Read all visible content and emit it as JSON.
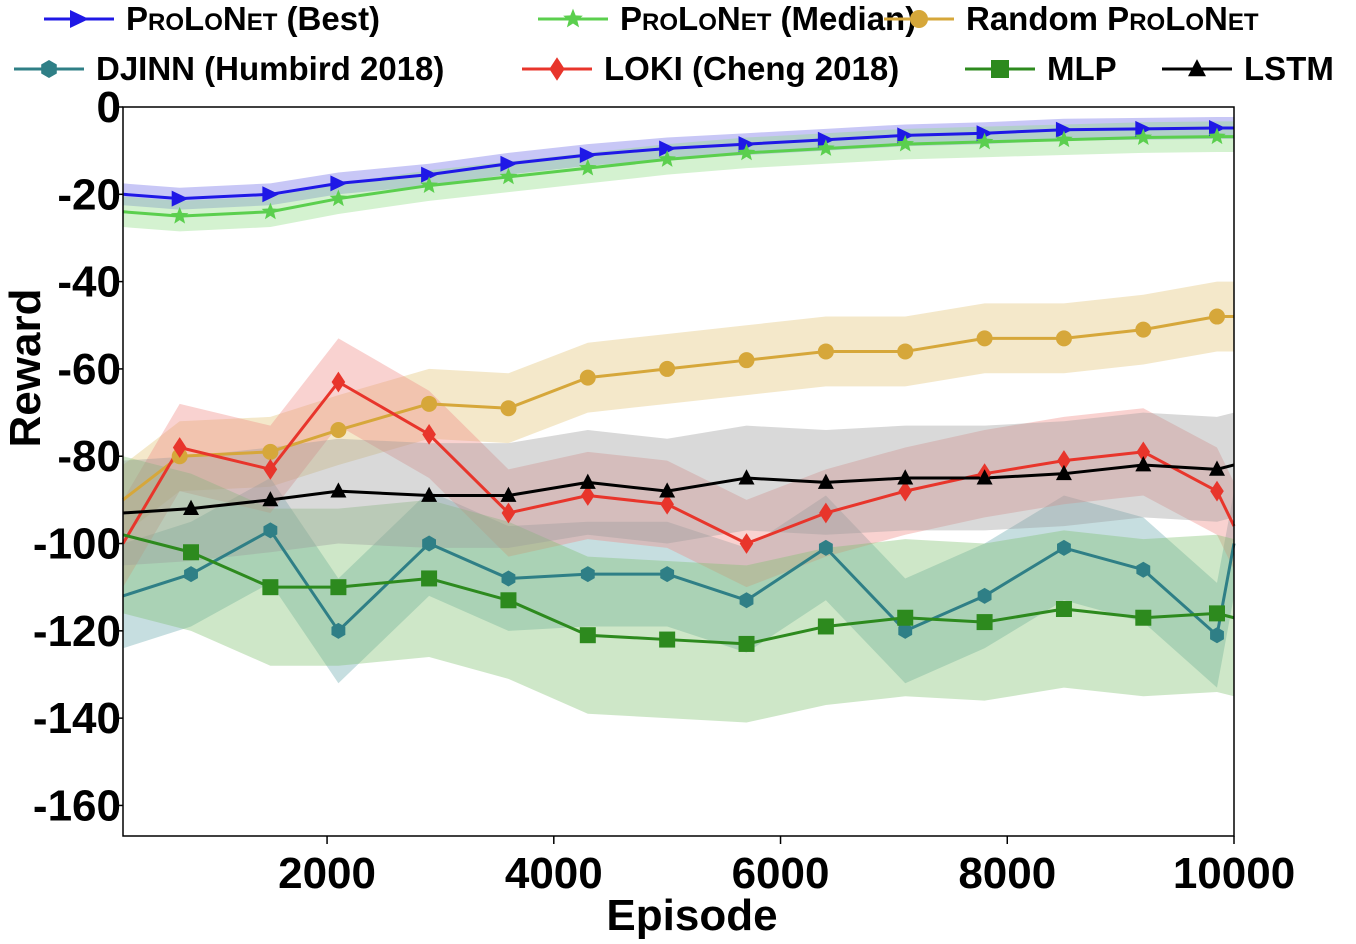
{
  "chart_data": {
    "type": "line",
    "title": "",
    "xlabel": "Episode",
    "ylabel": "Reward",
    "xlim": [
      200,
      10000
    ],
    "ylim": [
      -167,
      0
    ],
    "xticks": [
      2000,
      4000,
      6000,
      8000,
      10000
    ],
    "xtick_labels": [
      "2000",
      "4000",
      "6000",
      "8000",
      "10000"
    ],
    "yticks": [
      0,
      -20,
      -40,
      -60,
      -80,
      -100,
      -120,
      -140,
      -160
    ],
    "ytick_labels": [
      "0",
      "-20",
      "-40",
      "-60",
      "-80",
      "-100",
      "-120",
      "-140",
      "-160"
    ],
    "grid": false,
    "legend_position": "top",
    "series": [
      {
        "name": "ProLoNet (Best)",
        "legend": {
          "main": "Best)",
          "sc1": "P",
          "sm1": "RO",
          "sc2": "L",
          "sm2": "O",
          "sc3": "N",
          "sm3": "ET",
          "suffix": " (Best)"
        },
        "color": "#1f18e6",
        "band_color": "#6f6be8",
        "marker": "triangle-right",
        "x": [
          200,
          700,
          1500,
          2100,
          2900,
          3600,
          4300,
          5000,
          5700,
          6400,
          7100,
          7800,
          8500,
          9200,
          9850,
          10000
        ],
        "y": [
          -20,
          -21,
          -20,
          -17.5,
          -15.5,
          -13,
          -11,
          -9.5,
          -8.5,
          -7.5,
          -6.5,
          -6,
          -5.2,
          -5,
          -4.8,
          -4.8
        ],
        "spread": 2.5
      },
      {
        "name": "ProLoNet (Median)",
        "legend": {
          "sc1": "P",
          "sm1": "RO",
          "sc2": "L",
          "sm2": "O",
          "sc3": "N",
          "sm3": "ET",
          "suffix": " (Median)"
        },
        "color": "#5bcf4e",
        "band_color": "#8fdc84",
        "marker": "star",
        "x": [
          200,
          700,
          1500,
          2100,
          2900,
          3600,
          4300,
          5000,
          5700,
          6400,
          7100,
          7800,
          8500,
          9200,
          9850,
          10000
        ],
        "y": [
          -24,
          -25,
          -24,
          -21,
          -18,
          -16,
          -14,
          -12,
          -10.5,
          -9.5,
          -8.5,
          -8,
          -7.5,
          -7,
          -6.8,
          -6.8
        ],
        "spread": 3.5
      },
      {
        "name": "Random ProLoNet",
        "legend": {
          "prefix": "Random ",
          "sc1": "P",
          "sm1": "RO",
          "sc2": "L",
          "sm2": "O",
          "sc3": "N",
          "sm3": "ET",
          "suffix": ""
        },
        "color": "#d6a73a",
        "band_color": "#e3c274",
        "marker": "circle",
        "x": [
          200,
          700,
          1500,
          2100,
          2900,
          3600,
          4300,
          5000,
          5700,
          6400,
          7100,
          7800,
          8500,
          9200,
          9850,
          10000
        ],
        "y": [
          -90,
          -80,
          -79,
          -74,
          -68,
          -69,
          -62,
          -60,
          -58,
          -56,
          -56,
          -53,
          -53,
          -51,
          -48,
          -48
        ],
        "spread": 8
      },
      {
        "name": "DJINN (Humbird 2018)",
        "legend": {
          "prefix": "DJINN (Humbird 2018)"
        },
        "color": "#2f7f86",
        "band_color": "#6aa8ad",
        "marker": "hexagon",
        "x": [
          200,
          800,
          1500,
          2100,
          2900,
          3600,
          4300,
          5000,
          5700,
          6400,
          7100,
          7800,
          8500,
          9200,
          9850,
          10000
        ],
        "y": [
          -112,
          -107,
          -97,
          -120,
          -100,
          -108,
          -107,
          -107,
          -113,
          -101,
          -120,
          -112,
          -101,
          -106,
          -121,
          -100
        ],
        "spread": 12
      },
      {
        "name": "LOKI (Cheng 2018)",
        "legend": {
          "prefix": "LOKI (Cheng 2018)"
        },
        "color": "#e8352b",
        "band_color": "#ef8a84",
        "marker": "diamond",
        "x": [
          200,
          700,
          1500,
          2100,
          2900,
          3600,
          4300,
          5000,
          5700,
          6400,
          7100,
          7800,
          8500,
          9200,
          9850,
          10000
        ],
        "y": [
          -100,
          -78,
          -83,
          -63,
          -75,
          -93,
          -89,
          -91,
          -100,
          -93,
          -88,
          -84,
          -81,
          -79,
          -88,
          -96
        ],
        "spread": 10
      },
      {
        "name": "MLP",
        "legend": {
          "prefix": "MLP"
        },
        "color": "#2d8a1e",
        "band_color": "#7fbf6e",
        "marker": "square",
        "x": [
          200,
          800,
          1500,
          2100,
          2900,
          3600,
          4300,
          5000,
          5700,
          6400,
          7100,
          7800,
          8500,
          9200,
          9850,
          10000
        ],
        "y": [
          -98,
          -102,
          -110,
          -110,
          -108,
          -113,
          -121,
          -122,
          -123,
          -119,
          -117,
          -118,
          -115,
          -117,
          -116,
          -117
        ],
        "spread": 18
      },
      {
        "name": "LSTM",
        "legend": {
          "prefix": "LSTM"
        },
        "color": "#000000",
        "band_color": "#9a9a9a",
        "marker": "triangle-up",
        "x": [
          200,
          800,
          1500,
          2100,
          2900,
          3600,
          4300,
          5000,
          5700,
          6400,
          7100,
          7800,
          8500,
          9200,
          9850,
          10000
        ],
        "y": [
          -93,
          -92,
          -90,
          -88,
          -89,
          -89,
          -86,
          -88,
          -85,
          -86,
          -85,
          -85,
          -84,
          -82,
          -83,
          -82
        ],
        "spread": 12
      }
    ]
  }
}
